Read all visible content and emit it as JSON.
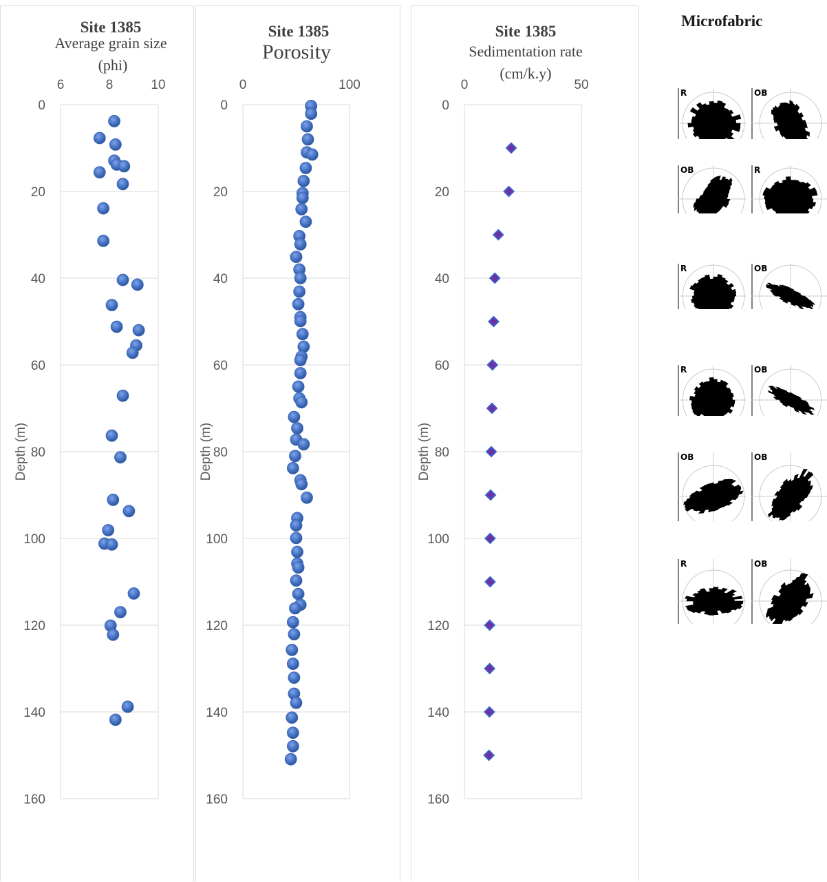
{
  "charts": [
    {
      "title": "Site 1385",
      "subtitle": "Average grain size",
      "unit": "(phi)",
      "ylabel": "Depth (m)",
      "xlim": [
        6,
        10
      ],
      "xticks": [
        "6",
        "8",
        "10"
      ],
      "ylim": [
        0,
        160
      ],
      "yticks": [
        "0",
        "20",
        "40",
        "60",
        "80",
        "100",
        "120",
        "140",
        "160"
      ],
      "marker": "circle",
      "color": "#4472c4",
      "points": [
        [
          8.2,
          3.8
        ],
        [
          7.6,
          7.7
        ],
        [
          8.25,
          9.2
        ],
        [
          8.2,
          12.9
        ],
        [
          8.3,
          13.8
        ],
        [
          8.6,
          14.2
        ],
        [
          7.6,
          15.6
        ],
        [
          8.55,
          18.3
        ],
        [
          7.75,
          23.9
        ],
        [
          7.75,
          31.4
        ],
        [
          8.55,
          40.4
        ],
        [
          9.15,
          41.5
        ],
        [
          8.1,
          46.2
        ],
        [
          8.3,
          51.2
        ],
        [
          9.2,
          52.0
        ],
        [
          9.1,
          55.5
        ],
        [
          8.95,
          57.2
        ],
        [
          8.55,
          67.1
        ],
        [
          8.1,
          76.3
        ],
        [
          8.45,
          81.3
        ],
        [
          8.15,
          91.1
        ],
        [
          8.8,
          93.7
        ],
        [
          7.95,
          98.1
        ],
        [
          7.8,
          101.2
        ],
        [
          8.1,
          101.4
        ],
        [
          9.0,
          112.7
        ],
        [
          8.45,
          117.0
        ],
        [
          8.05,
          120.1
        ],
        [
          8.15,
          122.2
        ],
        [
          8.75,
          138.8
        ],
        [
          8.25,
          141.8
        ]
      ]
    },
    {
      "title": "Site 1385",
      "subtitle": "Porosity",
      "unit": "",
      "ylabel": "Depth (m)",
      "xlim": [
        0,
        100
      ],
      "xticks": [
        "0",
        "100"
      ],
      "ylim": [
        0,
        160
      ],
      "yticks": [
        "0",
        "20",
        "40",
        "60",
        "80",
        "100",
        "120",
        "140",
        "160"
      ],
      "marker": "circle",
      "color": "#4472c4",
      "points": [
        [
          64,
          0.3
        ],
        [
          64,
          2.1
        ],
        [
          60,
          5.0
        ],
        [
          61,
          8.0
        ],
        [
          60,
          11.0
        ],
        [
          65,
          11.5
        ],
        [
          59,
          14.6
        ],
        [
          57,
          17.6
        ],
        [
          56,
          20.4
        ],
        [
          56,
          21.5
        ],
        [
          55,
          24.1
        ],
        [
          59,
          27.0
        ],
        [
          53,
          30.3
        ],
        [
          54,
          32.2
        ],
        [
          50,
          35.1
        ],
        [
          53,
          38.0
        ],
        [
          54,
          40.0
        ],
        [
          53,
          43.1
        ],
        [
          52,
          46.0
        ],
        [
          54,
          49.0
        ],
        [
          54,
          49.9
        ],
        [
          56,
          52.9
        ],
        [
          57,
          55.8
        ],
        [
          55,
          58.1
        ],
        [
          54,
          58.9
        ],
        [
          54,
          61.9
        ],
        [
          52,
          65.0
        ],
        [
          53,
          67.7
        ],
        [
          55,
          68.6
        ],
        [
          48,
          72.0
        ],
        [
          51,
          74.6
        ],
        [
          50,
          77.2
        ],
        [
          57,
          78.3
        ],
        [
          49,
          81.0
        ],
        [
          47,
          83.8
        ],
        [
          54,
          86.6
        ],
        [
          55,
          87.5
        ],
        [
          60,
          90.6
        ],
        [
          51,
          95.3
        ],
        [
          50,
          97.0
        ],
        [
          50,
          99.9
        ],
        [
          51,
          103.1
        ],
        [
          51,
          105.8
        ],
        [
          52,
          106.7
        ],
        [
          50,
          109.7
        ],
        [
          52,
          112.8
        ],
        [
          54,
          115.3
        ],
        [
          49,
          116.1
        ],
        [
          47,
          119.3
        ],
        [
          48,
          122.1
        ],
        [
          46,
          125.7
        ],
        [
          47,
          128.9
        ],
        [
          48,
          132.1
        ],
        [
          48,
          135.8
        ],
        [
          50,
          137.9
        ],
        [
          46,
          141.3
        ],
        [
          47,
          144.8
        ],
        [
          47,
          147.9
        ],
        [
          45,
          150.9
        ]
      ]
    },
    {
      "title": "Site 1385",
      "subtitle": "Sedimentation rate",
      "unit": "(cm/k.y)",
      "ylabel": "Depth (m)",
      "xlim": [
        0,
        50
      ],
      "xticks": [
        "0",
        "50"
      ],
      "ylim": [
        0,
        160
      ],
      "yticks": [
        "0",
        "20",
        "40",
        "60",
        "80",
        "100",
        "120",
        "140",
        "160"
      ],
      "marker": "diamond",
      "color": "#7030a0",
      "edge": "#3a5fcd",
      "points": [
        [
          20,
          10
        ],
        [
          19,
          20
        ],
        [
          14.5,
          30
        ],
        [
          13,
          40
        ],
        [
          12.5,
          50
        ],
        [
          12,
          60
        ],
        [
          11.8,
          70
        ],
        [
          11.5,
          80
        ],
        [
          11.2,
          90
        ],
        [
          11,
          100
        ],
        [
          11,
          110
        ],
        [
          10.8,
          120
        ],
        [
          10.8,
          130
        ],
        [
          10.7,
          140
        ],
        [
          10.5,
          150
        ]
      ]
    }
  ],
  "microfabric": {
    "title": "Microfabric",
    "rows": [
      {
        "left": "R",
        "right": "OB"
      },
      {
        "left": "OB",
        "right": "R"
      },
      {
        "left": "R",
        "right": "OB"
      },
      {
        "left": "R",
        "right": "OB"
      },
      {
        "left": "OB",
        "right": "OB"
      },
      {
        "left": "R",
        "right": "OB"
      }
    ]
  }
}
